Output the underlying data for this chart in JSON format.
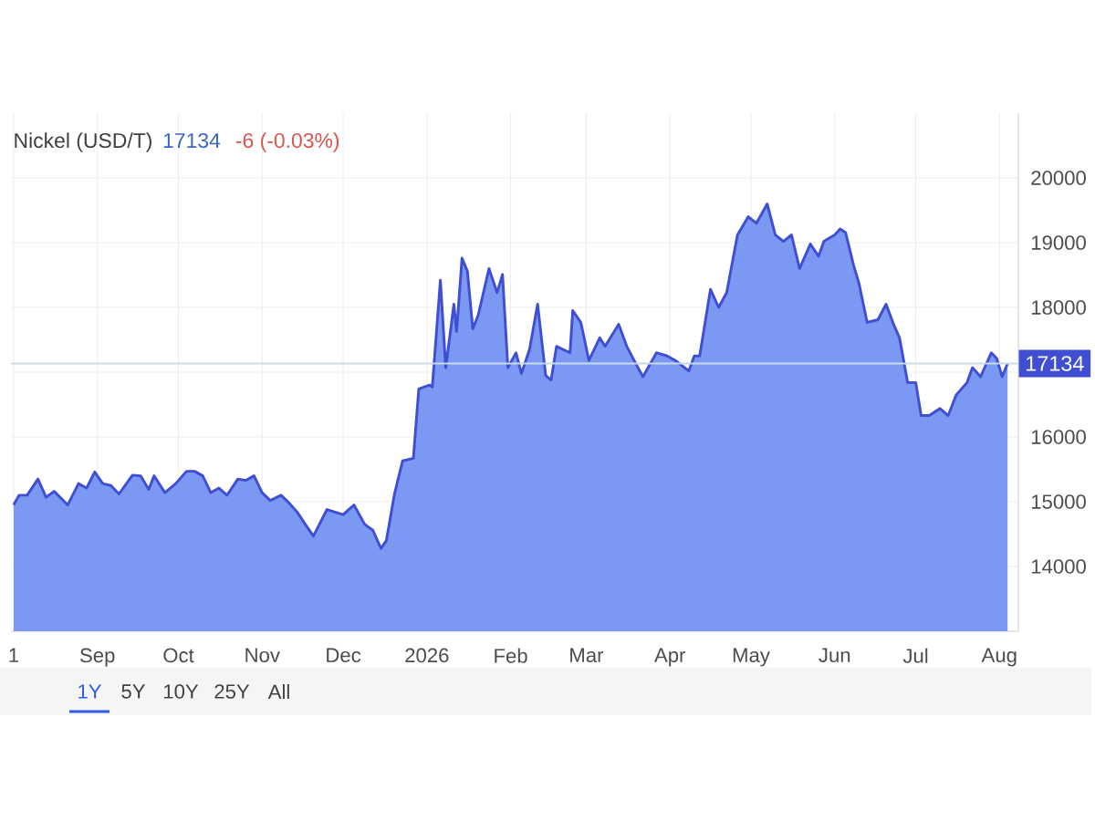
{
  "chart_data": {
    "type": "area",
    "title": "Nickel (USD/T)",
    "annotations": [
      "17134",
      "-6 (-0.03%)",
      "1Y",
      "5Y",
      "10Y",
      "25Y",
      "All"
    ],
    "x": [
      "2025-08-01",
      "2025-08-03",
      "2025-08-06",
      "2025-08-10",
      "2025-08-13",
      "2025-08-16",
      "2025-08-21",
      "2025-08-25",
      "2025-08-28",
      "2025-08-31",
      "2025-09-03",
      "2025-09-06",
      "2025-09-09",
      "2025-09-14",
      "2025-09-17",
      "2025-09-20",
      "2025-09-22",
      "2025-09-26",
      "2025-09-30",
      "2025-10-04",
      "2025-10-07",
      "2025-10-10",
      "2025-10-13",
      "2025-10-16",
      "2025-10-19",
      "2025-10-23",
      "2025-10-26",
      "2025-10-29",
      "2025-11-01",
      "2025-11-04",
      "2025-11-08",
      "2025-11-11",
      "2025-11-14",
      "2025-11-17",
      "2025-11-20",
      "2025-11-25",
      "2025-11-28",
      "2025-12-01",
      "2025-12-05",
      "2025-12-09",
      "2025-12-12",
      "2025-12-15",
      "2025-12-17",
      "2025-12-20",
      "2025-12-23",
      "2025-12-27",
      "2025-12-29",
      "2026-01-02",
      "2026-01-03",
      "2026-01-06",
      "2026-01-08",
      "2026-01-11",
      "2026-01-12",
      "2026-01-14",
      "2026-01-16",
      "2026-01-18",
      "2026-01-20",
      "2026-01-24",
      "2026-01-27",
      "2026-01-29",
      "2026-01-31",
      "2026-02-03",
      "2026-02-05",
      "2026-02-08",
      "2026-02-11",
      "2026-02-14",
      "2026-02-16",
      "2026-02-18",
      "2026-02-23",
      "2026-02-24",
      "2026-02-27",
      "2026-03-02",
      "2026-03-06",
      "2026-03-08",
      "2026-03-13",
      "2026-03-16",
      "2026-03-19",
      "2026-03-22",
      "2026-03-27",
      "2026-03-31",
      "2026-04-03",
      "2026-04-08",
      "2026-04-10",
      "2026-04-12",
      "2026-04-16",
      "2026-04-19",
      "2026-04-22",
      "2026-04-26",
      "2026-04-30",
      "2026-05-03",
      "2026-05-07",
      "2026-05-10",
      "2026-05-13",
      "2026-05-16",
      "2026-05-19",
      "2026-05-23",
      "2026-05-26",
      "2026-05-28",
      "2026-06-01",
      "2026-06-03",
      "2026-06-05",
      "2026-06-08",
      "2026-06-10",
      "2026-06-13",
      "2026-06-17",
      "2026-06-20",
      "2026-06-23",
      "2026-06-25",
      "2026-06-28",
      "2026-07-01",
      "2026-07-03",
      "2026-07-06",
      "2026-07-10",
      "2026-07-13",
      "2026-07-16",
      "2026-07-20",
      "2026-07-22",
      "2026-07-25",
      "2026-07-29",
      "2026-07-31",
      "2026-08-02",
      "2026-08-04"
    ],
    "series": [
      {
        "color": "#7b98f2",
        "values": [
          14950,
          15100,
          15100,
          15350,
          15070,
          15160,
          14950,
          15280,
          15210,
          15460,
          15280,
          15250,
          15120,
          15410,
          15400,
          15190,
          15400,
          15140,
          15280,
          15470,
          15470,
          15400,
          15140,
          15210,
          15100,
          15350,
          15330,
          15400,
          15140,
          15020,
          15100,
          14980,
          14840,
          14650,
          14470,
          14880,
          14840,
          14800,
          14950,
          14650,
          14560,
          14280,
          14400,
          15120,
          15630,
          15670,
          16740,
          16800,
          16770,
          18420,
          17070,
          18050,
          17630,
          18760,
          18560,
          17670,
          17880,
          18600,
          18230,
          18510,
          17070,
          17300,
          16980,
          17350,
          18050,
          16950,
          16880,
          17400,
          17300,
          17950,
          17770,
          17180,
          17530,
          17400,
          17740,
          17400,
          17160,
          16930,
          17300,
          17250,
          17180,
          17020,
          17250,
          17250,
          18280,
          18000,
          18230,
          19120,
          19400,
          19300,
          19600,
          19120,
          19020,
          19120,
          18600,
          18980,
          18790,
          19020,
          19120,
          19210,
          19160,
          18650,
          18370,
          17770,
          17810,
          18050,
          17720,
          17530,
          16840,
          16840,
          16330,
          16330,
          16440,
          16330,
          16650,
          16840,
          17070,
          16930,
          17300,
          17210,
          16930,
          17134
        ]
      }
    ],
    "xlim": [
      "2025-07-31",
      "2026-08-08"
    ],
    "xticks": [
      {
        "value": "2025-08-01",
        "label": "1"
      },
      {
        "value": "2025-09-01",
        "label": "Sep"
      },
      {
        "value": "2025-10-01",
        "label": "Oct"
      },
      {
        "value": "2025-11-01",
        "label": "Nov"
      },
      {
        "value": "2025-12-01",
        "label": "Dec"
      },
      {
        "value": "2026-01-01",
        "label": "2026"
      },
      {
        "value": "2026-02-01",
        "label": "Feb"
      },
      {
        "value": "2026-03-01",
        "label": "Mar"
      },
      {
        "value": "2026-04-01",
        "label": "Apr"
      },
      {
        "value": "2026-05-01",
        "label": "May"
      },
      {
        "value": "2026-06-01",
        "label": "Jun"
      },
      {
        "value": "2026-07-01",
        "label": "Jul"
      },
      {
        "value": "2026-08-01",
        "label": "Aug"
      }
    ],
    "ylim": [
      13000,
      21000
    ],
    "yticks": [
      14000,
      15000,
      16000,
      {
        "value": 17000,
        "label": null
      },
      18000,
      19000,
      20000
    ],
    "ref_lines": [
      {
        "axis": "y",
        "value": 17134,
        "label": "17134",
        "color": "#c9dbe8"
      }
    ],
    "grid": true
  }
}
